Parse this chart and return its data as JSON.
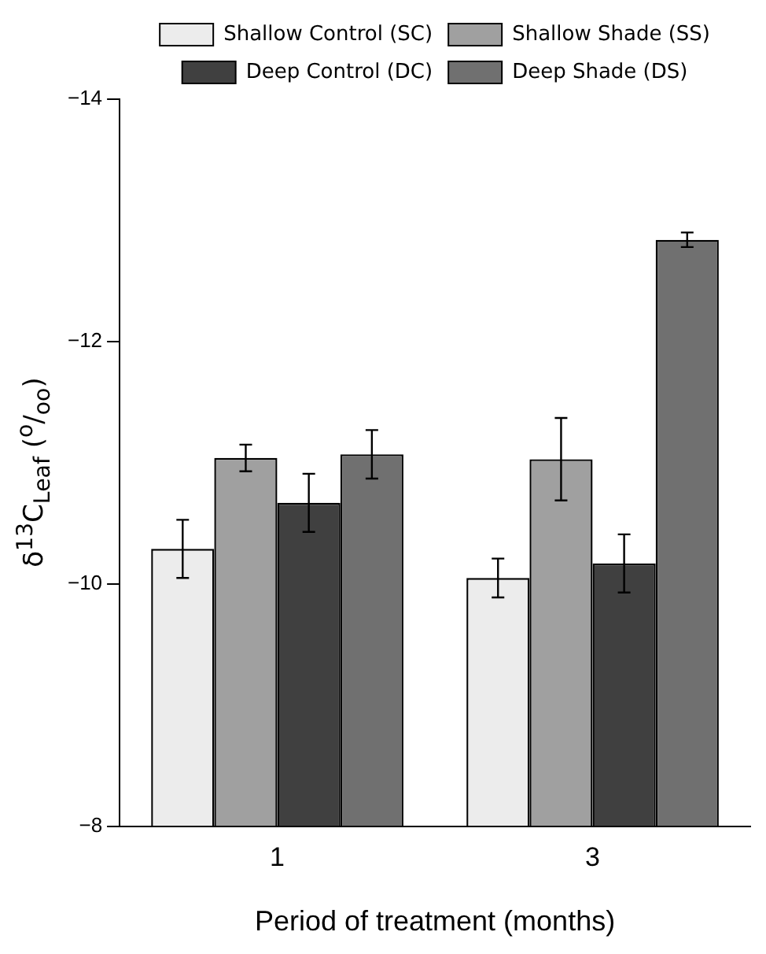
{
  "chart_data": {
    "type": "bar",
    "xlabel": "Period of treatment (months)",
    "ylabel": "δ$^{13}$C$_{Leaf}$ ($^{o}$/$_{oo}$)",
    "categories": [
      "1",
      "3"
    ],
    "series": [
      {
        "name": "Shallow Control (SC)",
        "color": "#ececec",
        "values": [
          -10.29,
          -10.05
        ],
        "errors": [
          0.24,
          0.16
        ]
      },
      {
        "name": "Shallow Shade (SS)",
        "color": "#a0a0a0",
        "values": [
          -11.04,
          -11.03
        ],
        "errors": [
          0.11,
          0.34
        ]
      },
      {
        "name": "Deep Control (DC)",
        "color": "#404040",
        "values": [
          -10.67,
          -10.17
        ],
        "errors": [
          0.24,
          0.24
        ]
      },
      {
        "name": "Deep Shade (DS)",
        "color": "#707070",
        "values": [
          -11.07,
          -12.84
        ],
        "errors": [
          0.2,
          0.06
        ]
      }
    ],
    "ylim": [
      -8,
      -14
    ],
    "yticks": [
      -14,
      -12,
      -10,
      -8
    ],
    "grid": false,
    "legend": "top"
  }
}
